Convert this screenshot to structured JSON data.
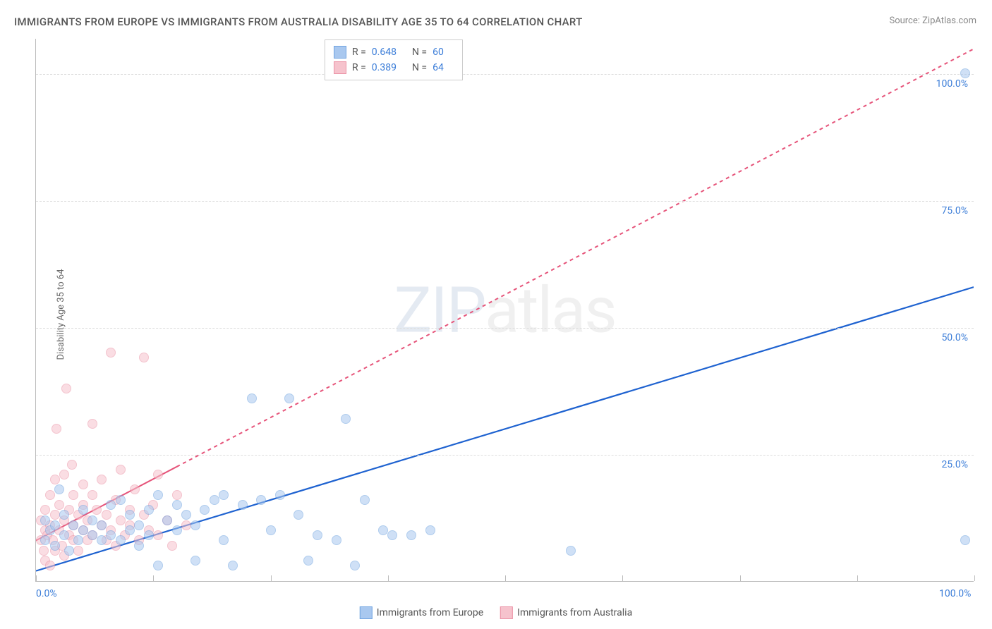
{
  "title": "IMMIGRANTS FROM EUROPE VS IMMIGRANTS FROM AUSTRALIA DISABILITY AGE 35 TO 64 CORRELATION CHART",
  "source": "Source: ZipAtlas.com",
  "ylabel": "Disability Age 35 to 64",
  "watermark_a": "ZIP",
  "watermark_b": "atlas",
  "chart": {
    "type": "scatter",
    "xlim": [
      0,
      100
    ],
    "ylim": [
      0,
      107
    ],
    "yticks": [
      25,
      50,
      75,
      100
    ],
    "ytick_labels": [
      "25.0%",
      "50.0%",
      "75.0%",
      "100.0%"
    ],
    "xticks": [
      0,
      25,
      50,
      75,
      100
    ],
    "xtick_labels_shown": {
      "0": "0.0%",
      "100": "100.0%"
    },
    "vtick_positions": [
      0,
      12.5,
      25,
      37.5,
      50,
      62.5,
      75,
      87.5,
      100
    ],
    "background_color": "#ffffff",
    "grid_color": "#dddddd",
    "axis_color": "#bbbbbb",
    "label_color": "#3b7dd8",
    "point_radius": 7,
    "point_opacity": 0.55,
    "series": [
      {
        "name": "Immigrants from Europe",
        "color_fill": "#a9c8ef",
        "color_stroke": "#6fa3e0",
        "trend_color": "#1e62d0",
        "trend_width": 2.2,
        "trend_dash": "none",
        "trend": {
          "x1": 0,
          "y1": 2,
          "x2": 100,
          "y2": 58
        },
        "r": "0.648",
        "n": "60",
        "points": [
          [
            1,
            12
          ],
          [
            1,
            8
          ],
          [
            1.5,
            10
          ],
          [
            2,
            11
          ],
          [
            2,
            7
          ],
          [
            2.5,
            18
          ],
          [
            3,
            9
          ],
          [
            3,
            13
          ],
          [
            3.5,
            6
          ],
          [
            4,
            11
          ],
          [
            4.5,
            8
          ],
          [
            5,
            14
          ],
          [
            5,
            10
          ],
          [
            6,
            9
          ],
          [
            6,
            12
          ],
          [
            7,
            8
          ],
          [
            7,
            11
          ],
          [
            8,
            9
          ],
          [
            8,
            15
          ],
          [
            9,
            16
          ],
          [
            9,
            8
          ],
          [
            10,
            10
          ],
          [
            10,
            13
          ],
          [
            11,
            11
          ],
          [
            11,
            7
          ],
          [
            12,
            14
          ],
          [
            12,
            9
          ],
          [
            13,
            17
          ],
          [
            13,
            3
          ],
          [
            14,
            12
          ],
          [
            15,
            10
          ],
          [
            15,
            15
          ],
          [
            16,
            13
          ],
          [
            17,
            11
          ],
          [
            17,
            4
          ],
          [
            18,
            14
          ],
          [
            19,
            16
          ],
          [
            20,
            8
          ],
          [
            20,
            17
          ],
          [
            21,
            3
          ],
          [
            22,
            15
          ],
          [
            23,
            36
          ],
          [
            24,
            16
          ],
          [
            25,
            10
          ],
          [
            26,
            17
          ],
          [
            27,
            36
          ],
          [
            28,
            13
          ],
          [
            29,
            4
          ],
          [
            30,
            9
          ],
          [
            32,
            8
          ],
          [
            33,
            32
          ],
          [
            34,
            3
          ],
          [
            35,
            16
          ],
          [
            37,
            10
          ],
          [
            38,
            9
          ],
          [
            40,
            9
          ],
          [
            42,
            10
          ],
          [
            57,
            6
          ],
          [
            99,
            100
          ],
          [
            99,
            8
          ]
        ]
      },
      {
        "name": "Immigrants from Australia",
        "color_fill": "#f6c3cd",
        "color_stroke": "#eb92a5",
        "trend_color": "#e6547a",
        "trend_width": 2,
        "trend_dash": "5,5",
        "trend_solid_until_x": 15,
        "trend": {
          "x1": 0,
          "y1": 8,
          "x2": 100,
          "y2": 105
        },
        "r": "0.389",
        "n": "64",
        "points": [
          [
            0.5,
            8
          ],
          [
            0.5,
            12
          ],
          [
            0.8,
            6
          ],
          [
            1,
            10
          ],
          [
            1,
            14
          ],
          [
            1,
            4
          ],
          [
            1.2,
            9
          ],
          [
            1.5,
            11
          ],
          [
            1.5,
            17
          ],
          [
            1.5,
            3
          ],
          [
            1.8,
            8
          ],
          [
            2,
            13
          ],
          [
            2,
            20
          ],
          [
            2,
            6
          ],
          [
            2.2,
            30
          ],
          [
            2.5,
            10
          ],
          [
            2.5,
            15
          ],
          [
            2.8,
            7
          ],
          [
            3,
            12
          ],
          [
            3,
            21
          ],
          [
            3,
            5
          ],
          [
            3.2,
            38
          ],
          [
            3.5,
            9
          ],
          [
            3.5,
            14
          ],
          [
            3.8,
            23
          ],
          [
            4,
            11
          ],
          [
            4,
            17
          ],
          [
            4,
            8
          ],
          [
            4.5,
            13
          ],
          [
            4.5,
            6
          ],
          [
            5,
            19
          ],
          [
            5,
            10
          ],
          [
            5,
            15
          ],
          [
            5.5,
            8
          ],
          [
            5.5,
            12
          ],
          [
            6,
            17
          ],
          [
            6,
            9
          ],
          [
            6,
            31
          ],
          [
            6.5,
            14
          ],
          [
            7,
            11
          ],
          [
            7,
            20
          ],
          [
            7.5,
            8
          ],
          [
            7.5,
            13
          ],
          [
            8,
            45
          ],
          [
            8,
            10
          ],
          [
            8.5,
            16
          ],
          [
            8.5,
            7
          ],
          [
            9,
            12
          ],
          [
            9,
            22
          ],
          [
            9.5,
            9
          ],
          [
            10,
            14
          ],
          [
            10,
            11
          ],
          [
            10.5,
            18
          ],
          [
            11,
            8
          ],
          [
            11.5,
            13
          ],
          [
            11.5,
            44
          ],
          [
            12,
            10
          ],
          [
            12.5,
            15
          ],
          [
            13,
            9
          ],
          [
            13,
            21
          ],
          [
            14,
            12
          ],
          [
            14.5,
            7
          ],
          [
            15,
            17
          ],
          [
            16,
            11
          ]
        ]
      }
    ]
  },
  "legend_top": {
    "rows": [
      {
        "swatch_fill": "#a9c8ef",
        "swatch_stroke": "#6fa3e0",
        "r": "0.648",
        "n": "60"
      },
      {
        "swatch_fill": "#f6c3cd",
        "swatch_stroke": "#eb92a5",
        "r": "0.389",
        "n": "64"
      }
    ],
    "r_label": "R =",
    "n_label": "N ="
  },
  "legend_bottom": {
    "items": [
      {
        "swatch_fill": "#a9c8ef",
        "swatch_stroke": "#6fa3e0",
        "label": "Immigrants from Europe"
      },
      {
        "swatch_fill": "#f6c3cd",
        "swatch_stroke": "#eb92a5",
        "label": "Immigrants from Australia"
      }
    ]
  }
}
